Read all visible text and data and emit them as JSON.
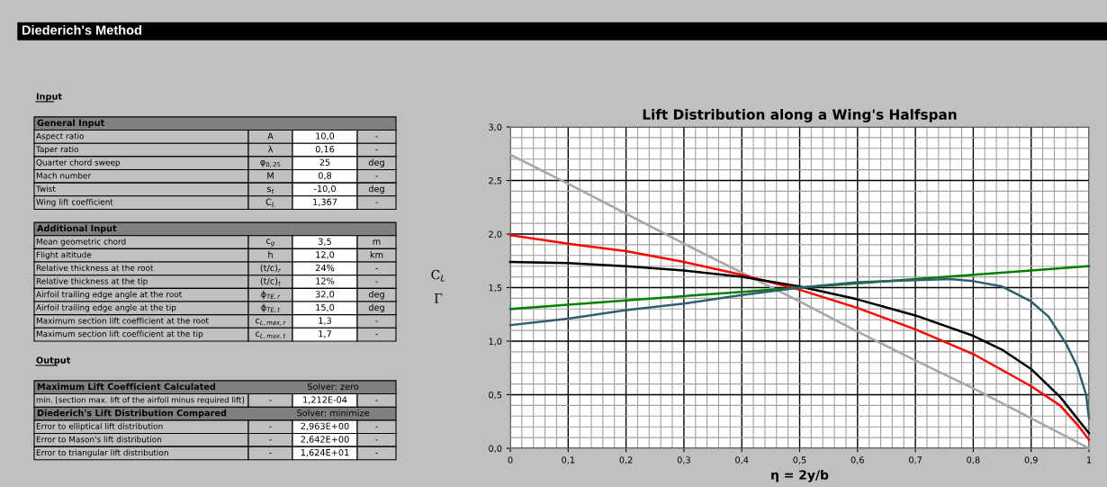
{
  "chart_data": [
    {
      "type": "other",
      "title": "Diederich's Method",
      "annotations": [
        "Input",
        "General Input",
        "Aspect ratio",
        "A",
        "10,0",
        "-",
        "Taper ratio",
        "λ",
        "0,16",
        "-",
        "Quarter chord sweep",
        "φ$_{0,25}$",
        "25",
        "deg",
        "Mach number",
        "M",
        "0,8",
        "-",
        "Twist",
        "s$_{t}$",
        "-10,0",
        "deg",
        "Wing lift coefficient",
        "C$_{L}$",
        "1,367",
        "-",
        "Additional Input",
        "Mean geometric chord",
        "c$_{g}$",
        "3,5",
        "m",
        "Flight altitude",
        "h",
        "12,0",
        "km",
        "Relative thickness at the root",
        "(t/c)$_{r}$",
        "24%",
        "-",
        "Relative thickness at the tip",
        "(t/c)$_{t}$",
        "12%",
        "-",
        "Airfoil trailing edge angle at the root",
        "ϕ$_{TE,r}$",
        "32,0",
        "deg",
        "Airfoil trailing edge angle at the tip",
        "ϕ$_{TE,t}$",
        "15,0",
        "deg",
        "Maximum section lift coefficient at the root",
        "c$_{L,max,r}$",
        "1,3",
        "-",
        "Maximum section lift coefficient at the tip",
        "c$_{L,max,t}$",
        "1,7",
        "-",
        "Output",
        "Maximum Lift Coefficient Calculated",
        "Solver: zero",
        "min. [section max. lift of the airfoil minus required lift]",
        "-",
        "1,212E-04",
        "-",
        "Diederich's Lift Distribution Compared",
        "Solver: minimize",
        "Error to elliptical lift distribution",
        "-",
        "2,963E+00",
        "-",
        "Error to Mason's lift distribution",
        "-",
        "2,642E+00",
        "-",
        "Error to triangular lift distribution",
        "-",
        "1,624E+01",
        "-"
      ]
    },
    {
      "type": "line",
      "title": "Lift Distribution along a Wing's Halfspan",
      "xlabel": "η = 2y/b",
      "ylabel": "C$_{L}$\nΓ",
      "xlim": [
        0,
        1
      ],
      "ylim": [
        0,
        3
      ],
      "xticks": [
        0,
        {
          "value": 0.1,
          "label": "0,1"
        },
        {
          "value": 0.2,
          "label": "0,2"
        },
        {
          "value": 0.3,
          "label": "0,3"
        },
        {
          "value": 0.4,
          "label": "0,4"
        },
        {
          "value": 0.5,
          "label": "0,5"
        },
        {
          "value": 0.6,
          "label": "0,6"
        },
        {
          "value": 0.7,
          "label": "0,7"
        },
        {
          "value": 0.8,
          "label": "0,8"
        },
        {
          "value": 0.9,
          "label": "0,9"
        },
        1
      ],
      "yticks": [
        {
          "value": 0,
          "label": "0,0"
        },
        {
          "value": 0.5,
          "label": "0,5"
        },
        {
          "value": 1,
          "label": "1,0"
        },
        {
          "value": 1.5,
          "label": "1,5"
        },
        {
          "value": 2,
          "label": "2,0"
        },
        {
          "value": 2.5,
          "label": "2,5"
        },
        {
          "value": 3,
          "label": "3,0"
        }
      ],
      "grid": true,
      "marker": "none",
      "line_style": "solid",
      "series": [
        {
          "color": "#a6a6a6",
          "x": [
            0,
            0.1,
            0.2,
            0.3,
            0.4,
            0.5,
            0.6,
            0.7,
            0.8,
            0.9,
            1
          ],
          "values": [
            2.74,
            2.47,
            2.19,
            1.91,
            1.64,
            1.37,
            1.09,
            0.82,
            0.56,
            0.28,
            0
          ]
        },
        {
          "color": "#ff0000",
          "x": [
            0,
            0.1,
            0.2,
            0.3,
            0.4,
            0.5,
            0.6,
            0.7,
            0.8,
            0.9,
            0.95,
            0.98,
            1
          ],
          "values": [
            1.99,
            1.91,
            1.84,
            1.74,
            1.62,
            1.48,
            1.31,
            1.11,
            0.88,
            0.58,
            0.4,
            0.22,
            0.08
          ]
        },
        {
          "color": "#000000",
          "x": [
            0,
            0.1,
            0.2,
            0.3,
            0.4,
            0.5,
            0.6,
            0.7,
            0.8,
            0.85,
            0.9,
            0.95,
            1
          ],
          "values": [
            1.74,
            1.73,
            1.7,
            1.66,
            1.6,
            1.51,
            1.39,
            1.24,
            1.05,
            0.92,
            0.74,
            0.48,
            0.14
          ]
        },
        {
          "color": "#008000",
          "x": [
            0,
            0.1,
            0.2,
            0.3,
            0.4,
            0.5,
            0.6,
            0.7,
            0.8,
            0.9,
            1
          ],
          "values": [
            1.3,
            1.34,
            1.38,
            1.42,
            1.46,
            1.5,
            1.54,
            1.58,
            1.62,
            1.66,
            1.7
          ]
        },
        {
          "color": "#2e5f6e",
          "x": [
            0,
            0.1,
            0.2,
            0.3,
            0.4,
            0.5,
            0.6,
            0.7,
            0.76,
            0.8,
            0.85,
            0.9,
            0.93,
            0.96,
            0.98,
            0.995,
            1
          ],
          "values": [
            1.15,
            1.21,
            1.29,
            1.35,
            1.43,
            1.5,
            1.55,
            1.57,
            1.58,
            1.56,
            1.51,
            1.37,
            1.23,
            0.98,
            0.76,
            0.5,
            0.28
          ]
        }
      ]
    }
  ]
}
